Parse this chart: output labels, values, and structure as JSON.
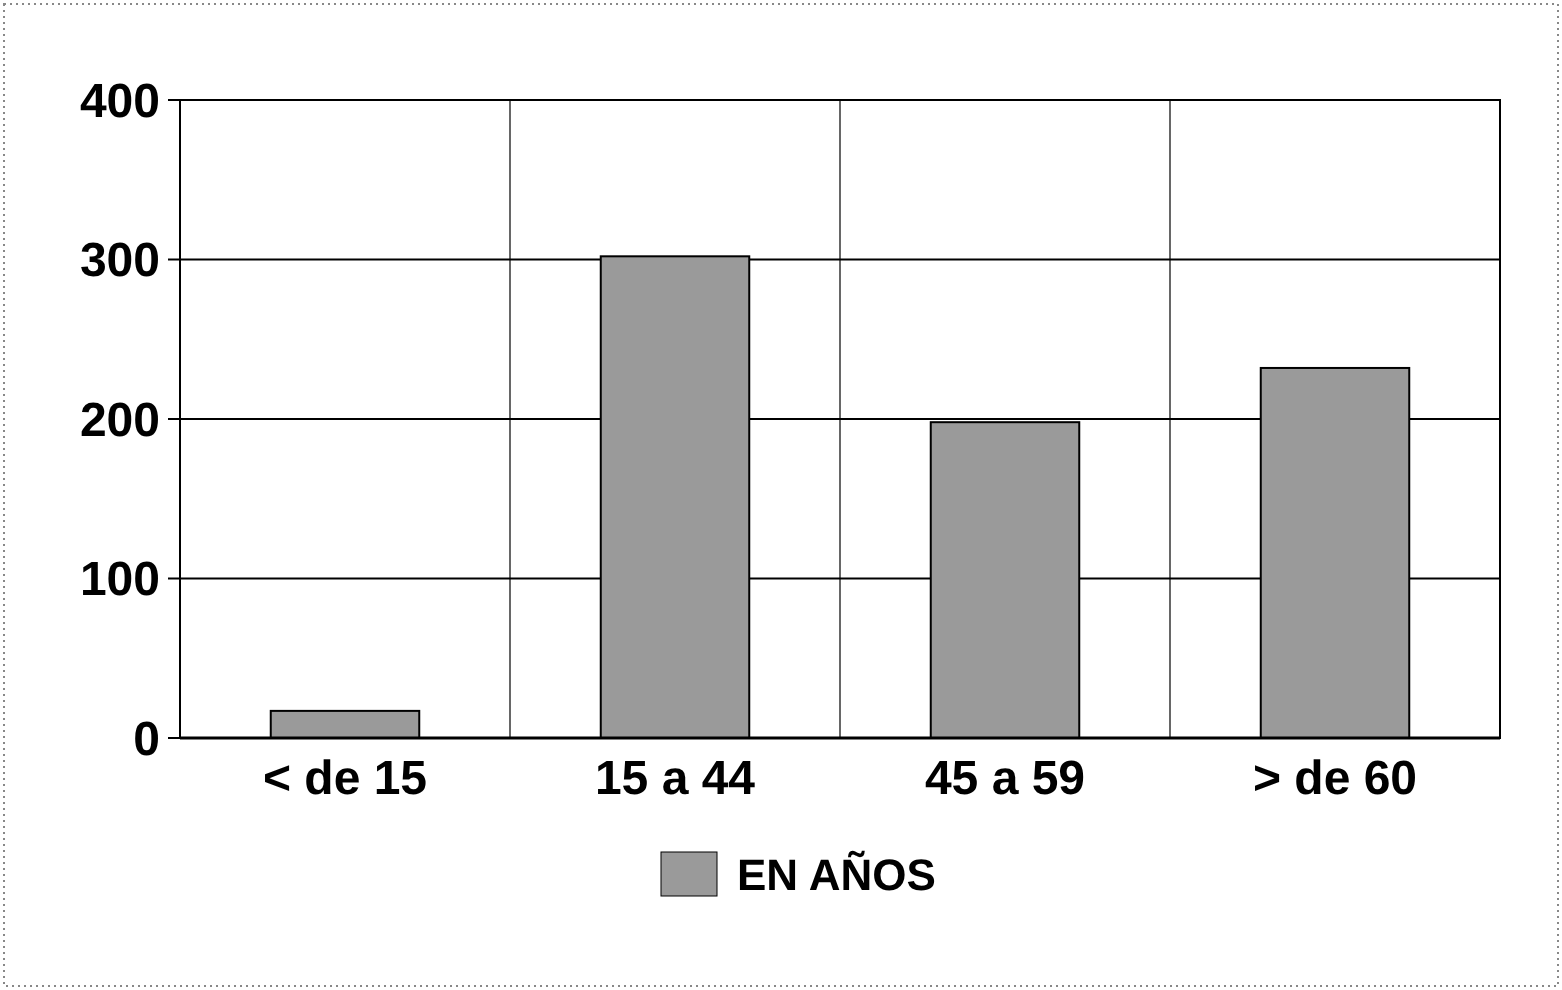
{
  "chart_data": {
    "type": "bar",
    "categories": [
      "< de 15",
      "15 a 44",
      "45 a 59",
      "> de 60"
    ],
    "series": [
      {
        "name": "EN AÑOS",
        "color": "#9a9a9a",
        "values": [
          17,
          302,
          198,
          232
        ]
      }
    ],
    "ylim": [
      0,
      400
    ],
    "yticks": [
      0,
      100,
      200,
      300,
      400
    ],
    "grid": true,
    "legend": "bottom"
  }
}
